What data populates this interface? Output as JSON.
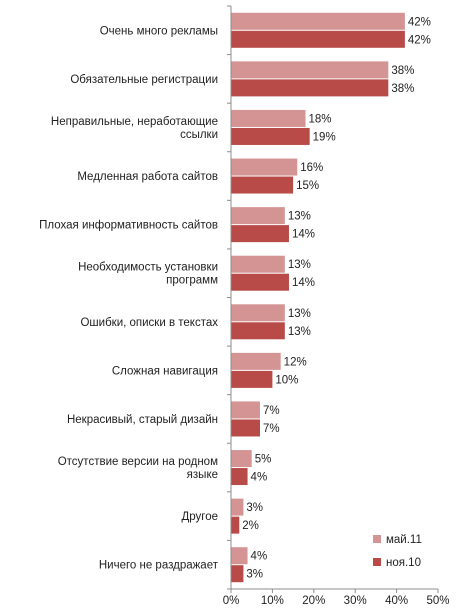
{
  "chart_data": {
    "type": "bar",
    "orientation": "horizontal",
    "categories": [
      "Очень много рекламы",
      "Обязательные регистрации",
      "Неправильные, неработающие ссылки",
      "Медленная работа сайтов",
      "Плохая информативность сайтов",
      "Необходимость установки программ",
      "Ошибки, описки в текстах",
      "Сложная навигация",
      "Некрасивый, старый дизайн",
      "Отсутствие версии на родном языке",
      "Другое",
      "Ничего не раздражает"
    ],
    "category_lines": [
      [
        "Очень много рекламы"
      ],
      [
        "Обязательные регистрации"
      ],
      [
        "Неправильные, неработающие",
        "ссылки"
      ],
      [
        "Медленная работа сайтов"
      ],
      [
        "Плохая информативность сайтов"
      ],
      [
        "Необходимость установки",
        "программ"
      ],
      [
        "Ошибки, описки в текстах"
      ],
      [
        "Сложная навигация"
      ],
      [
        "Некрасивый, старый дизайн"
      ],
      [
        "Отсутствие версии на родном",
        "языке"
      ],
      [
        "Другое"
      ],
      [
        "Ничего не раздражает"
      ]
    ],
    "series": [
      {
        "name": "май.11",
        "color": "#d49494",
        "values": [
          42,
          38,
          18,
          16,
          13,
          13,
          13,
          12,
          7,
          5,
          3,
          4
        ]
      },
      {
        "name": "ноя.10",
        "color": "#b84a48",
        "values": [
          42,
          38,
          19,
          15,
          14,
          14,
          13,
          10,
          7,
          4,
          2,
          3
        ]
      }
    ],
    "value_suffix": "%",
    "xlim": [
      0,
      50
    ],
    "xticks": [
      0,
      10,
      20,
      30,
      40,
      50
    ],
    "xtick_labels": [
      "0%",
      "10%",
      "20%",
      "30%",
      "40%",
      "50%"
    ],
    "grid": false,
    "legend_position": "bottom-right",
    "title": "",
    "xlabel": "",
    "ylabel": ""
  }
}
